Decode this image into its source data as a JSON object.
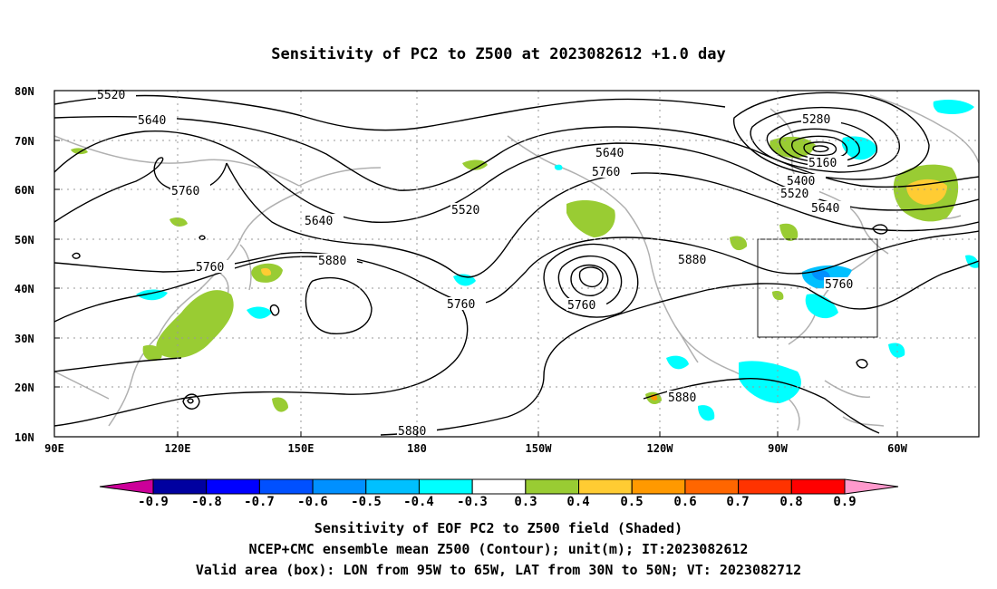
{
  "title": "Sensitivity of PC2 to Z500 at 2023082612 +1.0 day",
  "map": {
    "lat_labels": [
      "80N",
      "70N",
      "60N",
      "50N",
      "40N",
      "30N",
      "20N",
      "10N"
    ],
    "lon_labels": [
      "90E",
      "120E",
      "150E",
      "180",
      "150W",
      "120W",
      "90W",
      "60W"
    ],
    "contour_labels": {
      "c5520a": "5520",
      "c5640a": "5640",
      "c5760a": "5760",
      "c5640b": "5640",
      "c5760b": "5760",
      "c5880a": "5880",
      "c5760c": "5760",
      "c5520b": "5520",
      "c5640c": "5640",
      "c5760d": "5760",
      "c5760e": "5760",
      "c5880b": "5880",
      "c5880c": "5880",
      "c5880d": "5880",
      "c5280": "5280",
      "c5160": "5160",
      "c5400": "5400",
      "c5520c": "5520",
      "c5640d": "5640",
      "c5760f": "5760"
    },
    "valid_box": {
      "lon_min": "95W",
      "lon_max": "65W",
      "lat_min": "30N",
      "lat_max": "50N"
    }
  },
  "colorbar": {
    "labels": [
      "-0.9",
      "-0.8",
      "-0.7",
      "-0.6",
      "-0.5",
      "-0.4",
      "-0.3",
      "0.3",
      "0.4",
      "0.5",
      "0.6",
      "0.7",
      "0.8",
      "0.9"
    ],
    "colors": [
      "#0000a0",
      "#0000ff",
      "#0050ff",
      "#0090ff",
      "#00c0ff",
      "#00ffff",
      "#ffffff",
      "#99cc33",
      "#ffcc33",
      "#ff9900",
      "#ff6600",
      "#ff3300",
      "#ff0000"
    ],
    "low_arrow_color": "#cc0099",
    "high_arrow_color": "#ff99cc"
  },
  "captions": {
    "line1": "Sensitivity of EOF PC2 to Z500 field (Shaded)",
    "line2": "NCEP+CMC ensemble mean Z500 (Contour); unit(m); IT:2023082612",
    "line3": "Valid area (box): LON from 95W to 65W, LAT from 30N to 50N; VT: 2023082712"
  }
}
